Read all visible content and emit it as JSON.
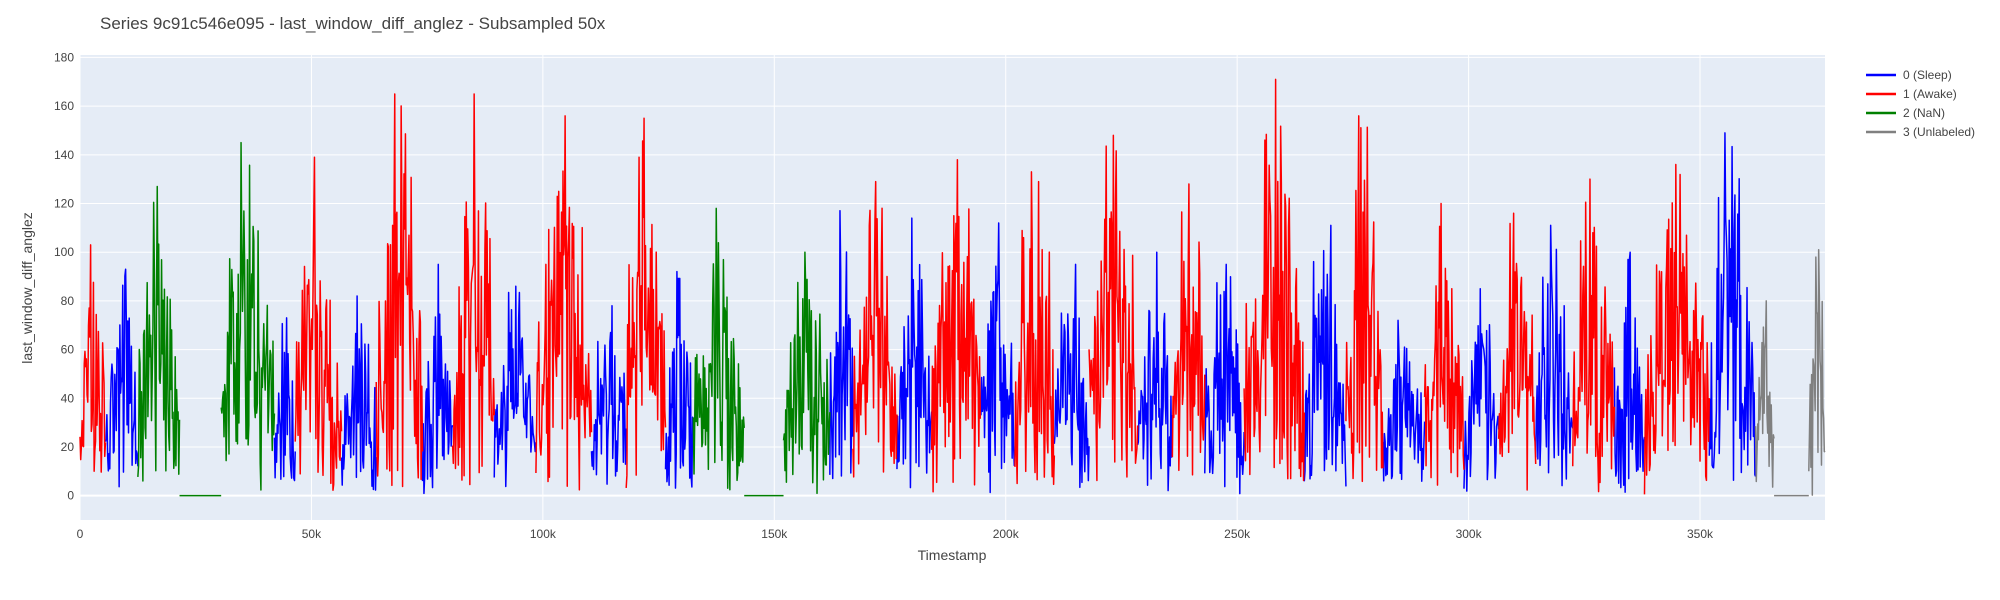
{
  "chart_data": {
    "type": "line",
    "title": "Series 9c91c546e095 - last_window_diff_anglez - Subsampled 50x",
    "xlabel": "Timestamp",
    "ylabel": "last_window_diff_anglez",
    "xlim": [
      0,
      377000
    ],
    "ylim": [
      -10,
      181
    ],
    "x_ticks": [
      0,
      50000,
      100000,
      150000,
      200000,
      250000,
      300000,
      350000
    ],
    "x_tick_labels": [
      "0",
      "50k",
      "100k",
      "150k",
      "200k",
      "250k",
      "300k",
      "350k"
    ],
    "y_ticks": [
      0,
      20,
      40,
      60,
      80,
      100,
      120,
      140,
      160,
      180
    ],
    "y_tick_labels": [
      "0",
      "20",
      "40",
      "60",
      "80",
      "100",
      "120",
      "140",
      "160",
      "180"
    ],
    "grid": true,
    "legend_position": "top-right",
    "plot_background": "#e5ecf6",
    "series": [
      {
        "name": "0 (Sleep)",
        "color": "#0000ff",
        "segments": [
          {
            "x_start": 5500,
            "x_end": 12500,
            "peak": 93
          },
          {
            "x_start": 42000,
            "x_end": 46500,
            "peak": 73
          },
          {
            "x_start": 56500,
            "x_end": 64000,
            "peak": 82
          },
          {
            "x_start": 74000,
            "x_end": 80500,
            "peak": 95
          },
          {
            "x_start": 89500,
            "x_end": 98500,
            "peak": 86
          },
          {
            "x_start": 110500,
            "x_end": 118000,
            "peak": 78
          },
          {
            "x_start": 126500,
            "x_end": 132500,
            "peak": 92
          },
          {
            "x_start": 162000,
            "x_end": 167000,
            "peak": 117
          },
          {
            "x_start": 176500,
            "x_end": 184000,
            "peak": 114
          },
          {
            "x_start": 194500,
            "x_end": 202000,
            "peak": 112
          },
          {
            "x_start": 210500,
            "x_end": 218000,
            "peak": 95
          },
          {
            "x_start": 228500,
            "x_end": 236000,
            "peak": 100
          },
          {
            "x_start": 243000,
            "x_end": 251500,
            "peak": 95
          },
          {
            "x_start": 264500,
            "x_end": 273500,
            "peak": 111
          },
          {
            "x_start": 281500,
            "x_end": 290500,
            "peak": 72
          },
          {
            "x_start": 299000,
            "x_end": 306500,
            "peak": 85
          },
          {
            "x_start": 314500,
            "x_end": 322500,
            "peak": 111
          },
          {
            "x_start": 331500,
            "x_end": 338000,
            "peak": 100
          },
          {
            "x_start": 352000,
            "x_end": 362000,
            "peak": 149
          }
        ]
      },
      {
        "name": "1 (Awake)",
        "color": "#ff0000",
        "segments": [
          {
            "x_start": 0,
            "x_end": 5500,
            "peak": 103
          },
          {
            "x_start": 46500,
            "x_end": 56500,
            "peak": 139
          },
          {
            "x_start": 64000,
            "x_end": 74000,
            "peak": 165
          },
          {
            "x_start": 80500,
            "x_end": 89500,
            "peak": 165
          },
          {
            "x_start": 98500,
            "x_end": 110500,
            "peak": 156
          },
          {
            "x_start": 118000,
            "x_end": 126500,
            "peak": 155
          },
          {
            "x_start": 167000,
            "x_end": 176500,
            "peak": 129
          },
          {
            "x_start": 184000,
            "x_end": 194500,
            "peak": 138
          },
          {
            "x_start": 202000,
            "x_end": 210500,
            "peak": 133
          },
          {
            "x_start": 218000,
            "x_end": 228500,
            "peak": 148
          },
          {
            "x_start": 236000,
            "x_end": 243000,
            "peak": 128
          },
          {
            "x_start": 251500,
            "x_end": 264500,
            "peak": 171
          },
          {
            "x_start": 273500,
            "x_end": 281500,
            "peak": 156
          },
          {
            "x_start": 290500,
            "x_end": 299000,
            "peak": 120
          },
          {
            "x_start": 306500,
            "x_end": 314500,
            "peak": 116
          },
          {
            "x_start": 322500,
            "x_end": 331500,
            "peak": 130
          },
          {
            "x_start": 338000,
            "x_end": 352000,
            "peak": 136
          }
        ]
      },
      {
        "name": "2 (NaN)",
        "color": "#008000",
        "segments": [
          {
            "x_start": 12500,
            "x_end": 21500,
            "peak": 127
          },
          {
            "x_start": 21500,
            "x_end": 30500,
            "peak": 0,
            "flat": true
          },
          {
            "x_start": 30500,
            "x_end": 42000,
            "peak": 145
          },
          {
            "x_start": 132500,
            "x_end": 143500,
            "peak": 118
          },
          {
            "x_start": 143500,
            "x_end": 152000,
            "peak": 0,
            "flat": true
          },
          {
            "x_start": 152000,
            "x_end": 162000,
            "peak": 100
          }
        ]
      },
      {
        "name": "3 (Unlabeled)",
        "color": "#808080",
        "segments": [
          {
            "x_start": 362000,
            "x_end": 366000,
            "peak": 80
          },
          {
            "x_start": 366000,
            "x_end": 373500,
            "peak": 0,
            "flat": true
          },
          {
            "x_start": 373500,
            "x_end": 377000,
            "peak": 101
          }
        ]
      }
    ]
  }
}
